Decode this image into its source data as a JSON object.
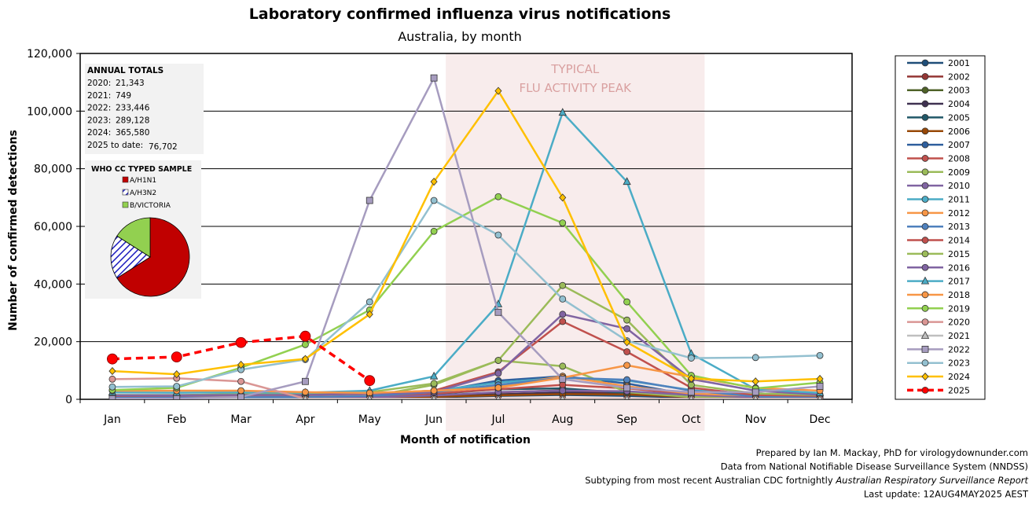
{
  "title": "Laboratory confirmed influenza virus notifications",
  "subtitle": "Australia, by month",
  "band_label_line1": "TYPICAL",
  "band_label_line2": "FLU ACTIVITY PEAK",
  "annual_totals": {
    "heading": "ANNUAL TOTALS",
    "rows": [
      {
        "label": "2020:",
        "value": "21,343"
      },
      {
        "label": "2021:",
        "value": "749"
      },
      {
        "label": "2022:",
        "value": "233,446"
      },
      {
        "label": "2023:",
        "value": "289,128"
      },
      {
        "label": "2024:",
        "value": "365,580"
      },
      {
        "label": "2025 to date:",
        "value": "76,702"
      }
    ]
  },
  "who_sample": {
    "heading": "WHO CC TYPED SAMPLE",
    "items": [
      {
        "label": "A/H1N1",
        "value": 0.66,
        "color": "#c00000",
        "pattern": "solid"
      },
      {
        "label": "A/H3N2",
        "value": 0.18,
        "color": "#1f1fbf",
        "pattern": "hatch"
      },
      {
        "label": "B/VICTORIA",
        "value": 0.16,
        "color": "#92d050",
        "pattern": "solid"
      }
    ]
  },
  "credits": [
    {
      "text": "Prepared by Ian M. Mackay, PhD for virologydownunder.com",
      "italic_part": ""
    },
    {
      "text": "Data from National Notifiable Disease Surveillance System (NNDSS)",
      "italic_part": ""
    },
    {
      "text": "Subtyping from most recent Australian CDC fortnightly ",
      "italic_part": "Australian Respiratory Surveillance Report"
    },
    {
      "text": "Last update: 12AUG4MAY2025 AEST",
      "italic_part": ""
    }
  ],
  "chart_data": {
    "type": "line",
    "title": "Laboratory confirmed influenza virus notifications",
    "subtitle": "Australia, by month",
    "xlabel": "Month of notification",
    "ylabel": "Number of confirmed detections",
    "categories": [
      "Jan",
      "Feb",
      "Mar",
      "Apr",
      "May",
      "Jun",
      "Jul",
      "Aug",
      "Sep",
      "Oct",
      "Nov",
      "Dec"
    ],
    "ylim": [
      0,
      120000
    ],
    "yticks": [
      0,
      20000,
      40000,
      60000,
      80000,
      100000,
      120000
    ],
    "ytick_labels": [
      "0",
      "20,000",
      "40,000",
      "60,000",
      "80,000",
      "100,000",
      "120,000"
    ],
    "highlight_band": {
      "from": "Jun",
      "to": "Oct"
    },
    "grid": true,
    "legend_position": "right",
    "series": [
      {
        "name": "2001",
        "color": "#1f4e79",
        "marker": "circle",
        "values": [
          150,
          150,
          200,
          250,
          400,
          700,
          1200,
          1500,
          1200,
          600,
          300,
          200
        ]
      },
      {
        "name": "2002",
        "color": "#943634",
        "marker": "circle",
        "values": [
          200,
          150,
          200,
          300,
          600,
          1200,
          2400,
          3100,
          2000,
          800,
          300,
          200
        ]
      },
      {
        "name": "2003",
        "color": "#4f6228",
        "marker": "circle",
        "values": [
          200,
          200,
          250,
          300,
          500,
          1000,
          1700,
          2200,
          1800,
          800,
          300,
          200
        ]
      },
      {
        "name": "2004",
        "color": "#3f3151",
        "marker": "circle",
        "values": [
          150,
          150,
          200,
          250,
          450,
          900,
          1700,
          2400,
          1800,
          800,
          300,
          200
        ]
      },
      {
        "name": "2005",
        "color": "#215868",
        "marker": "circle",
        "values": [
          200,
          200,
          300,
          400,
          700,
          1800,
          3500,
          3800,
          2200,
          900,
          400,
          250
        ]
      },
      {
        "name": "2006",
        "color": "#984807",
        "marker": "circle",
        "values": [
          200,
          200,
          250,
          300,
          500,
          900,
          1400,
          1800,
          1700,
          800,
          300,
          200
        ]
      },
      {
        "name": "2007",
        "color": "#2e5f9e",
        "marker": "circle",
        "values": [
          200,
          200,
          300,
          400,
          800,
          2500,
          6500,
          8000,
          5500,
          1500,
          500,
          300
        ]
      },
      {
        "name": "2008",
        "color": "#c0504d",
        "marker": "circle",
        "values": [
          300,
          300,
          400,
          500,
          900,
          2000,
          3500,
          5000,
          3800,
          1700,
          600,
          400
        ]
      },
      {
        "name": "2009",
        "color": "#9bbb59",
        "marker": "circle",
        "values": [
          300,
          300,
          400,
          500,
          1000,
          5000,
          13500,
          11500,
          2500,
          800,
          400,
          300
        ]
      },
      {
        "name": "2010",
        "color": "#8064a2",
        "marker": "circle",
        "values": [
          400,
          400,
          400,
          500,
          700,
          1300,
          2500,
          3000,
          2800,
          1500,
          700,
          400
        ]
      },
      {
        "name": "2011",
        "color": "#4bacc6",
        "marker": "circle",
        "values": [
          800,
          800,
          1000,
          1200,
          2000,
          3000,
          5800,
          7500,
          6500,
          3200,
          1500,
          900
        ]
      },
      {
        "name": "2012",
        "color": "#f79646",
        "marker": "circle",
        "values": [
          1000,
          1000,
          1200,
          1200,
          1500,
          2500,
          4500,
          8000,
          4500,
          2000,
          1200,
          1000
        ]
      },
      {
        "name": "2013",
        "color": "#4f81bd",
        "marker": "circle",
        "values": [
          600,
          600,
          700,
          800,
          1200,
          2500,
          5000,
          7500,
          6800,
          3000,
          1000,
          600
        ]
      },
      {
        "name": "2014",
        "color": "#c0504d",
        "marker": "circle",
        "values": [
          1200,
          1300,
          1500,
          1500,
          2000,
          3000,
          9500,
          27000,
          16500,
          4000,
          1500,
          1200
        ]
      },
      {
        "name": "2015",
        "color": "#9bbb59",
        "marker": "circle",
        "values": [
          1500,
          1500,
          1800,
          2000,
          2500,
          5500,
          13500,
          39500,
          27500,
          5000,
          2000,
          1500
        ]
      },
      {
        "name": "2016",
        "color": "#8064a2",
        "marker": "circle",
        "values": [
          1400,
          1400,
          1500,
          1500,
          2000,
          2500,
          9000,
          29500,
          24500,
          7000,
          3000,
          1600
        ]
      },
      {
        "name": "2017",
        "color": "#4bacc6",
        "marker": "triangle",
        "values": [
          2400,
          2300,
          2400,
          2300,
          3000,
          8000,
          33000,
          99500,
          75500,
          15800,
          3500,
          2200
        ]
      },
      {
        "name": "2018",
        "color": "#f79646",
        "marker": "circle",
        "values": [
          3000,
          3000,
          3000,
          2500,
          2200,
          3000,
          4000,
          7500,
          11800,
          7800,
          4000,
          3000
        ]
      },
      {
        "name": "2019",
        "color": "#92d050",
        "marker": "circle",
        "values": [
          3200,
          4000,
          11000,
          19000,
          31000,
          58300,
          70300,
          61200,
          33800,
          8300,
          3800,
          5800
        ]
      },
      {
        "name": "2020",
        "color": "#da9694",
        "marker": "circle",
        "values": [
          7000,
          7300,
          6200,
          200,
          200,
          200,
          200,
          200,
          200,
          200,
          200,
          200
        ]
      },
      {
        "name": "2021",
        "color": "#bfbfbf",
        "marker": "triangle",
        "values": [
          100,
          70,
          80,
          60,
          60,
          60,
          60,
          50,
          50,
          50,
          50,
          50
        ]
      },
      {
        "name": "2022",
        "color": "#a69cbf",
        "marker": "square",
        "values": [
          200,
          200,
          800,
          6200,
          69000,
          111500,
          30200,
          7000,
          4000,
          2500,
          2500,
          4500
        ]
      },
      {
        "name": "2023",
        "color": "#93c0d0",
        "marker": "circle",
        "values": [
          4300,
          4500,
          10300,
          13800,
          33800,
          69000,
          57000,
          34800,
          20300,
          14300,
          14500,
          15200
        ]
      },
      {
        "name": "2024",
        "color": "#ffc000",
        "marker": "diamond",
        "values": [
          9800,
          8700,
          12000,
          14000,
          29500,
          75500,
          107000,
          70000,
          19800,
          7200,
          6200,
          7100
        ]
      },
      {
        "name": "2025",
        "color": "#ff0000",
        "marker": "bigcircle",
        "dashed": true,
        "values": [
          14000,
          14700,
          19700,
          21900,
          6500,
          null,
          null,
          null,
          null,
          null,
          null,
          null
        ]
      }
    ]
  }
}
